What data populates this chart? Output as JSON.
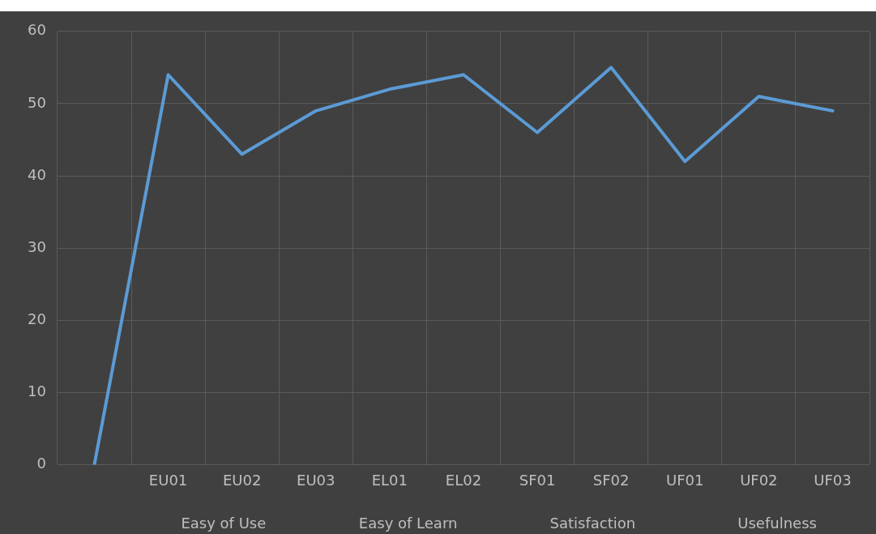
{
  "chart_data": {
    "type": "line",
    "categories": [
      null,
      "EU01",
      "EU02",
      "EU03",
      "EL01",
      "EL02",
      "SF01",
      "SF02",
      "UF01",
      "UF02",
      "UF03"
    ],
    "series": [
      {
        "color": "#5b9bd5",
        "values": [
          0,
          54,
          43,
          49,
          52,
          54,
          46,
          55,
          42,
          51,
          49
        ]
      }
    ],
    "ylim": [
      0,
      60
    ],
    "yticks": [
      0,
      10,
      20,
      30,
      40,
      50,
      60
    ],
    "grid": true,
    "legend": false,
    "marker": "none",
    "line_style": "solid",
    "annotations": [
      "Easy of Use",
      "Easy of Learn",
      "Satisfaction",
      "Usefulness"
    ]
  }
}
